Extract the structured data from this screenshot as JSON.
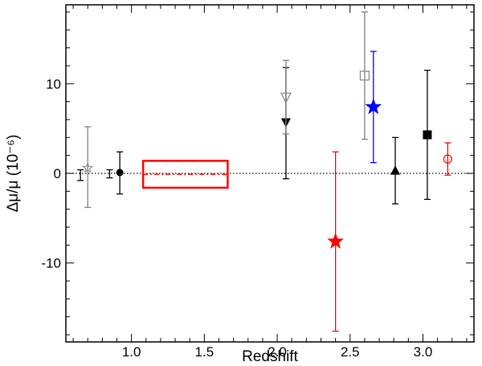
{
  "chart_data": {
    "type": "scatter",
    "xlabel": "Redshift",
    "ylabel": "Δμ/μ (10⁻⁶)",
    "xlim": [
      0.55,
      3.35
    ],
    "ylim": [
      -18.8,
      18.8
    ],
    "x_ticks": [
      {
        "value": 1.0,
        "label": "1.0"
      },
      {
        "value": 1.5,
        "label": "1.5"
      },
      {
        "value": 2.0,
        "label": "2.0"
      },
      {
        "value": 2.5,
        "label": "2.5"
      },
      {
        "value": 3.0,
        "label": "3.0"
      }
    ],
    "y_ticks": [
      {
        "value": -10,
        "label": "-10"
      },
      {
        "value": 0,
        "label": "0"
      },
      {
        "value": 10,
        "label": "10"
      }
    ],
    "reference_line": {
      "y": 0,
      "style": "dotted"
    },
    "range_box": {
      "x_range": [
        1.08,
        1.66
      ],
      "y_range": [
        -1.6,
        1.4
      ],
      "center": -0.1,
      "color": "#ff0000"
    },
    "points": [
      {
        "x": 0.65,
        "y": -0.2,
        "yerr_low": -0.8,
        "yerr_high": 0.4,
        "marker": "none",
        "color": "#000000"
      },
      {
        "x": 0.7,
        "y": 0.6,
        "yerr_low": -3.8,
        "yerr_high": 5.2,
        "marker": "star-open",
        "color": "#808080"
      },
      {
        "x": 0.85,
        "y": -0.1,
        "yerr_low": -0.5,
        "yerr_high": 0.4,
        "marker": "none",
        "color": "#000000"
      },
      {
        "x": 0.92,
        "y": 0.1,
        "yerr_low": -2.3,
        "yerr_high": 2.4,
        "marker": "circle-filled",
        "color": "#000000"
      },
      {
        "x": 2.06,
        "y": 5.7,
        "yerr_low": -0.6,
        "yerr_high": 11.8,
        "marker": "triangle-down-filled",
        "color": "#000000"
      },
      {
        "x": 2.06,
        "y": 8.5,
        "yerr_low": 4.4,
        "yerr_high": 12.6,
        "marker": "triangle-down-open",
        "color": "#808080"
      },
      {
        "x": 2.4,
        "y": -7.6,
        "yerr_low": -17.6,
        "yerr_high": 2.4,
        "marker": "star-filled",
        "color": "#ff0000"
      },
      {
        "x": 2.6,
        "y": 10.9,
        "yerr_low": 3.8,
        "yerr_high": 18.0,
        "marker": "square-open",
        "color": "#808080"
      },
      {
        "x": 2.66,
        "y": 7.4,
        "yerr_low": 1.2,
        "yerr_high": 13.6,
        "marker": "star-filled",
        "color": "#0000ff"
      },
      {
        "x": 2.81,
        "y": 0.3,
        "yerr_low": -3.4,
        "yerr_high": 4.0,
        "marker": "triangle-up-filled",
        "color": "#000000"
      },
      {
        "x": 3.03,
        "y": 4.3,
        "yerr_low": -2.9,
        "yerr_high": 11.5,
        "marker": "square-filled",
        "color": "#000000"
      },
      {
        "x": 3.17,
        "y": 1.6,
        "yerr_low": -0.2,
        "yerr_high": 3.4,
        "marker": "circle-open",
        "color": "#ff0000"
      }
    ]
  }
}
